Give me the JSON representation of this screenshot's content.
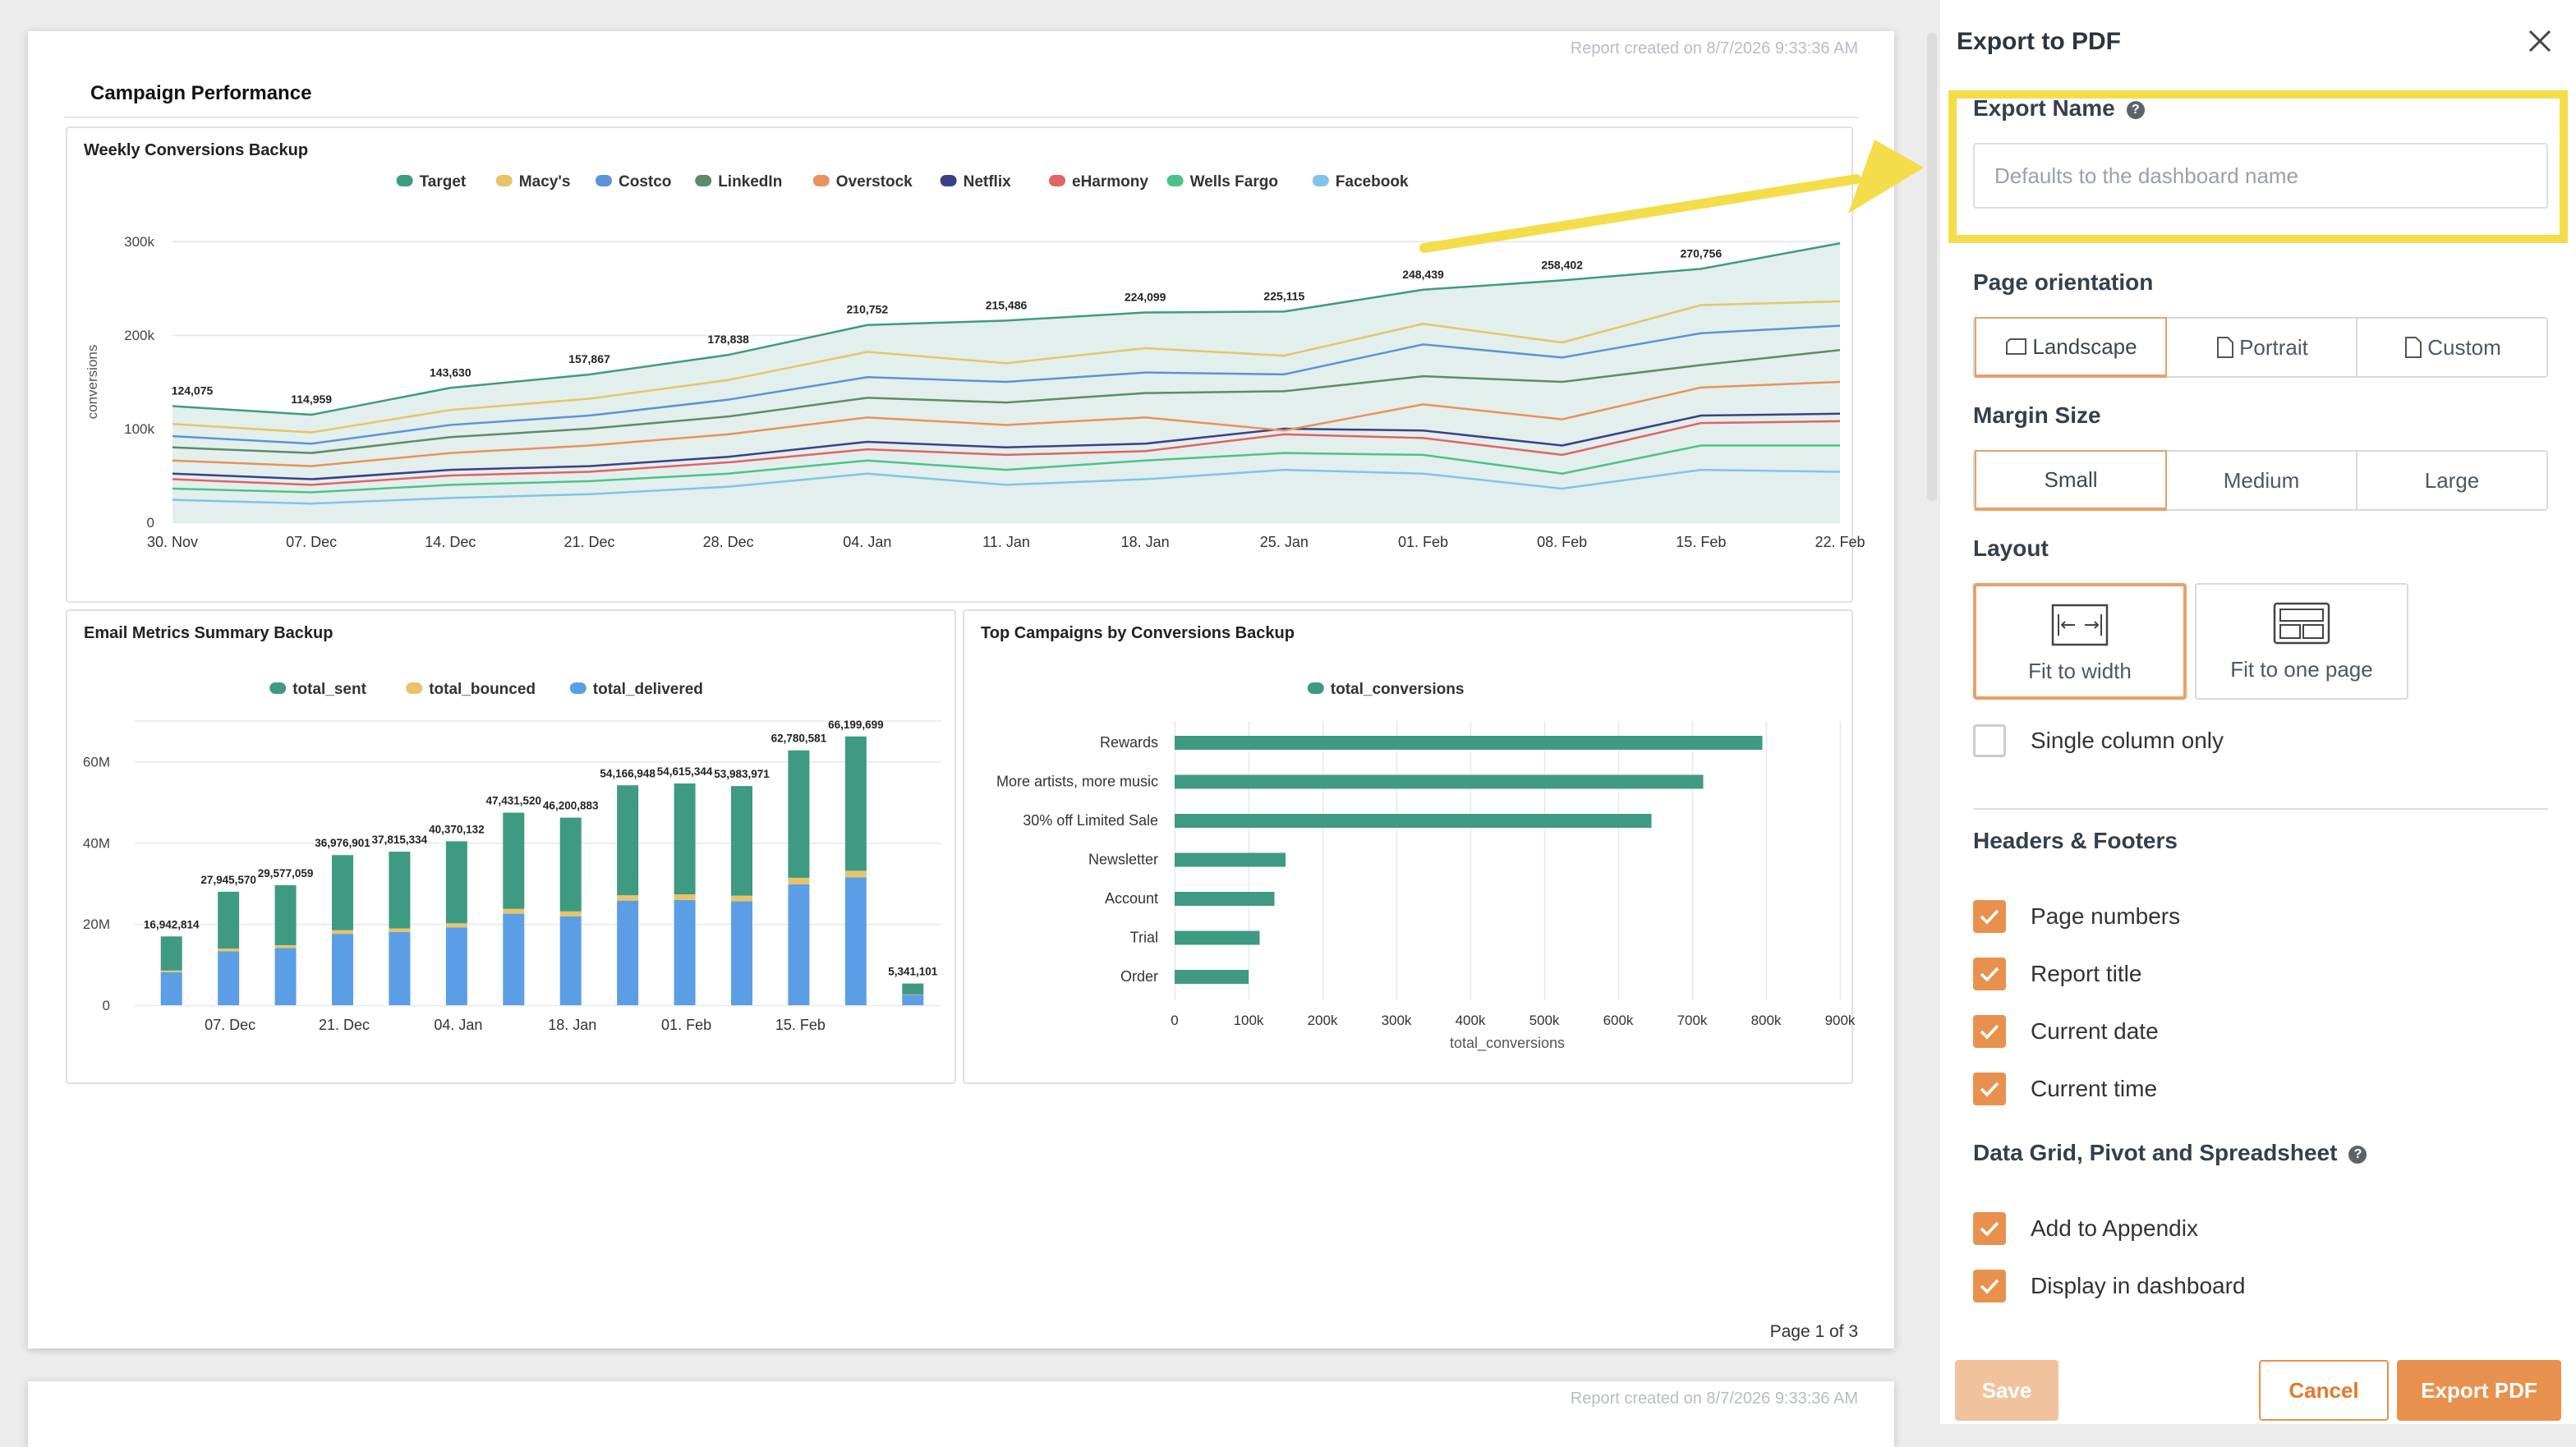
{
  "report": {
    "created": "Report created on 8/7/2026 9:33:36 AM",
    "page_number": "Page 1 of 3",
    "dashboard_title": "Campaign Performance"
  },
  "charts": {
    "weekly": {
      "title": "Weekly Conversions Backup",
      "chart_data": {
        "type": "area",
        "title": "Weekly Conversions Backup",
        "ylabel": "conversions",
        "xlabel": "",
        "ylim": [
          0,
          300000
        ],
        "yticks": [
          "0",
          "100k",
          "200k",
          "300k"
        ],
        "x": [
          "30. Nov",
          "07. Dec",
          "14. Dec",
          "21. Dec",
          "28. Dec",
          "04. Jan",
          "11. Jan",
          "18. Jan",
          "25. Jan",
          "01. Feb",
          "08. Feb",
          "15. Feb",
          "22. Feb"
        ],
        "total_labels": [
          "124,075",
          "114,959",
          "143,630",
          "157,867",
          "178,838",
          "210,752",
          "215,486",
          "224,099",
          "225,115",
          "248,439",
          "258,402",
          "270,756",
          ""
        ],
        "series": [
          {
            "name": "Target",
            "color": "#3f9a82",
            "values": [
              124075,
              114959,
              143630,
              157867,
              178838,
              210752,
              215486,
              224099,
              225115,
              248439,
              258402,
              270756,
              298000
            ]
          },
          {
            "name": "Macy's",
            "color": "#e8c36a",
            "values": [
              105000,
              96000,
              120000,
              132000,
              152000,
              182000,
              170000,
              186000,
              178000,
              212000,
              192000,
              232000,
              236000
            ]
          },
          {
            "name": "Costco",
            "color": "#5b93d9",
            "values": [
              92000,
              84000,
              104000,
              114000,
              131000,
              155000,
              150000,
              160000,
              158000,
              190000,
              176000,
              202000,
              210000
            ]
          },
          {
            "name": "LinkedIn",
            "color": "#5e8a6a",
            "values": [
              80000,
              74000,
              91000,
              100000,
              113000,
              133000,
              128000,
              138000,
              140000,
              156000,
              150000,
              168000,
              184000
            ]
          },
          {
            "name": "Overstock",
            "color": "#e8925a",
            "values": [
              66000,
              60000,
              74000,
              82000,
              94000,
              112000,
              104000,
              112000,
              98000,
              126000,
              110000,
              144000,
              150000
            ]
          },
          {
            "name": "Netflix",
            "color": "#3a4088",
            "values": [
              52000,
              46000,
              56000,
              60000,
              70000,
              86000,
              80000,
              84000,
              100000,
              98000,
              82000,
              114000,
              116000
            ]
          },
          {
            "name": "eHarmony",
            "color": "#e06464",
            "values": [
              46000,
              40000,
              50000,
              54000,
              64000,
              78000,
              72000,
              76000,
              94000,
              90000,
              72000,
              106000,
              108000
            ]
          },
          {
            "name": "Wells Fargo",
            "color": "#4cc28a",
            "values": [
              36000,
              32000,
              40000,
              44000,
              52000,
              66000,
              56000,
              66000,
              74000,
              72000,
              52000,
              82000,
              82000
            ]
          },
          {
            "name": "Facebook",
            "color": "#7fc4e8",
            "values": [
              24000,
              20000,
              26000,
              30000,
              38000,
              52000,
              40000,
              46000,
              56000,
              52000,
              36000,
              56000,
              54000
            ]
          }
        ]
      }
    },
    "email": {
      "title": "Email Metrics Summary Backup",
      "chart_data": {
        "type": "bar",
        "title": "Email Metrics Summary Backup",
        "xlabel": "",
        "ylabel": "",
        "ylim": [
          0,
          70000000
        ],
        "yticks": [
          "0",
          "20M",
          "40M",
          "60M"
        ],
        "xticks": [
          "07. Dec",
          "21. Dec",
          "04. Jan",
          "18. Jan",
          "01. Feb",
          "15. Feb"
        ],
        "total_labels": [
          "16,942,814",
          "27,945,570",
          "29,577,059",
          "36,976,901",
          "37,815,334",
          "40,370,132",
          "47,431,520",
          "46,200,883",
          "54,166,948",
          "54,615,344",
          "53,983,971",
          "62,780,581",
          "66,199,699",
          "5,341,101"
        ],
        "series": [
          {
            "name": "total_sent",
            "color": "#3f9a82",
            "values": [
              8400000,
              14000000,
              14800000,
              18500000,
              18900000,
              20200000,
              23700000,
              23100000,
              27100000,
              27300000,
              27000000,
              31400000,
              33100000,
              2700000
            ]
          },
          {
            "name": "total_bounced",
            "color": "#e8c36a",
            "values": [
              400000,
              700000,
              700000,
              900000,
              900000,
              1000000,
              1200000,
              1200000,
              1300000,
              1400000,
              1400000,
              1600000,
              1600000,
              100000
            ]
          },
          {
            "name": "total_delivered",
            "color": "#5b9ee6",
            "values": [
              8142814,
              13245570,
              14077059,
              17576901,
              18015334,
              19170132,
              22531520,
              21900883,
              25766948,
              25915344,
              25583971,
              29780581,
              31499699,
              2541101
            ]
          }
        ]
      }
    },
    "campaigns": {
      "title": "Top Campaigns by Conversions Backup",
      "chart_data": {
        "type": "bar",
        "orientation": "horizontal",
        "title": "Top Campaigns by Conversions Backup",
        "xlabel": "total_conversions",
        "ylabel": "",
        "xlim": [
          0,
          900000
        ],
        "xticks": [
          "0",
          "100k",
          "200k",
          "300k",
          "400k",
          "500k",
          "600k",
          "700k",
          "800k",
          "900k"
        ],
        "categories": [
          "Rewards",
          "More artists, more music",
          "30% off Limited Sale",
          "Newsletter",
          "Account",
          "Trial",
          "Order"
        ],
        "series": [
          {
            "name": "total_conversions",
            "color": "#3f9a82",
            "values": [
              795000,
              715000,
              645000,
              150000,
              135000,
              115000,
              100000
            ]
          }
        ]
      }
    }
  },
  "panel": {
    "title": "Export to PDF",
    "export_name_label": "Export Name",
    "export_name_placeholder": "Defaults to the dashboard name",
    "export_name_value": "",
    "orientation_label": "Page orientation",
    "orientation_options": [
      "Landscape",
      "Portrait",
      "Custom"
    ],
    "orientation_selected": "Landscape",
    "margin_label": "Margin Size",
    "margin_options": [
      "Small",
      "Medium",
      "Large"
    ],
    "margin_selected": "Small",
    "layout_label": "Layout",
    "layout_options": [
      "Fit to width",
      "Fit to one page"
    ],
    "layout_selected": "Fit to width",
    "single_column_label": "Single column only",
    "single_column_checked": false,
    "headers_label": "Headers & Footers",
    "headers_items": [
      {
        "label": "Page numbers",
        "checked": true
      },
      {
        "label": "Report title",
        "checked": true
      },
      {
        "label": "Current date",
        "checked": true
      },
      {
        "label": "Current time",
        "checked": true
      }
    ],
    "datagrid_label": "Data Grid, Pivot and Spreadsheet",
    "datagrid_items": [
      {
        "label": "Add to Appendix",
        "checked": true
      },
      {
        "label": "Display in dashboard",
        "checked": true
      }
    ],
    "buttons": {
      "save": "Save",
      "cancel": "Cancel",
      "export": "Export PDF"
    },
    "accent_color": "#e8914e",
    "highlight_color": "#f4dd4a"
  }
}
